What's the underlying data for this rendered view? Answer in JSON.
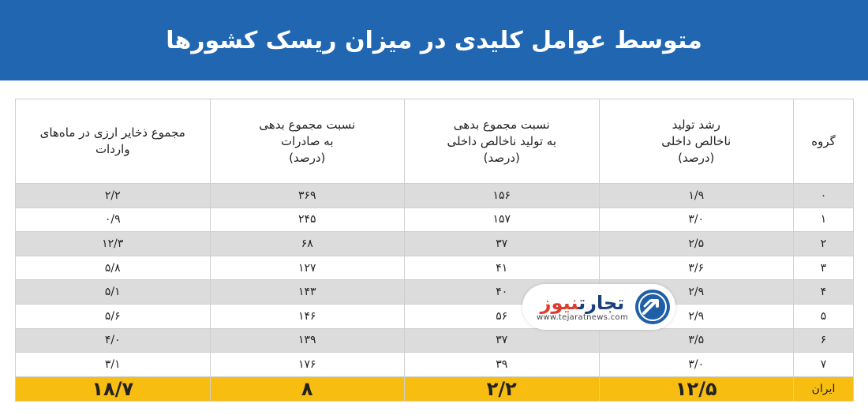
{
  "title": "متوسط عوامل کلیدی در میزان ریسک کشورها",
  "table": {
    "headers": {
      "group": "گروه",
      "gdp_growth": [
        "رشد تولید",
        "ناخالص داخلی",
        "(درصد)"
      ],
      "debt_gdp": [
        "نسبت مجموع بدهی",
        "به تولید ناخالص داخلی",
        "(درصد)"
      ],
      "debt_exports": [
        "نسبت مجموع بدهی",
        "به صادرات",
        "(درصد)"
      ],
      "reserves": [
        "مجموع ذخایر ارزی در ماه‌های",
        "واردات"
      ]
    },
    "rows": [
      {
        "group": "۰",
        "gdp_growth": "۱/۹",
        "debt_gdp": "۱۵۶",
        "debt_exports": "۳۶۹",
        "reserves": "۲/۲"
      },
      {
        "group": "۱",
        "gdp_growth": "۳/۰",
        "debt_gdp": "۱۵۷",
        "debt_exports": "۲۴۵",
        "reserves": "۰/۹"
      },
      {
        "group": "۲",
        "gdp_growth": "۲/۵",
        "debt_gdp": "۳۷",
        "debt_exports": "۶۸",
        "reserves": "۱۲/۳"
      },
      {
        "group": "۳",
        "gdp_growth": "۳/۶",
        "debt_gdp": "۴۱",
        "debt_exports": "۱۲۷",
        "reserves": "۵/۸"
      },
      {
        "group": "۴",
        "gdp_growth": "۲/۹",
        "debt_gdp": "۴۰",
        "debt_exports": "۱۴۳",
        "reserves": "۵/۱"
      },
      {
        "group": "۵",
        "gdp_growth": "۲/۹",
        "debt_gdp": "۵۶",
        "debt_exports": "۱۴۶",
        "reserves": "۵/۶"
      },
      {
        "group": "۶",
        "gdp_growth": "۳/۵",
        "debt_gdp": "۳۷",
        "debt_exports": "۱۳۹",
        "reserves": "۴/۰"
      },
      {
        "group": "۷",
        "gdp_growth": "۳/۰",
        "debt_gdp": "۳۹",
        "debt_exports": "۱۷۶",
        "reserves": "۳/۱"
      }
    ],
    "iran": {
      "group": "ایران",
      "gdp_growth": "۱۲/۵",
      "debt_gdp": "۲/۲",
      "debt_exports": "۸",
      "reserves": "۱۸/۷"
    }
  },
  "watermark": {
    "name_part1": "تجارت",
    "name_part2": "نیوز",
    "url": "www.tejaratnews.com",
    "logo_icon": "tejaratnews-logo-icon"
  },
  "colors": {
    "header_bg": "#2166b0",
    "highlight_row": "#f7bd11",
    "stripe": "#dcdcdc"
  }
}
